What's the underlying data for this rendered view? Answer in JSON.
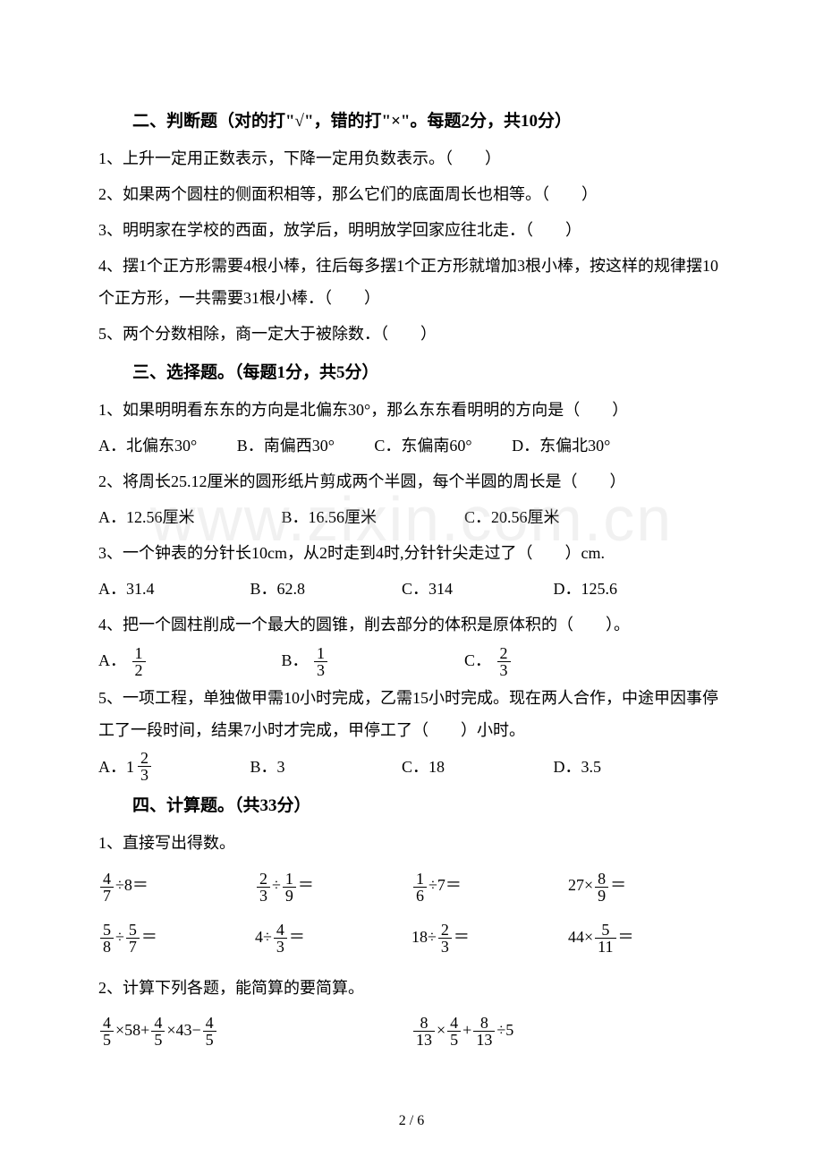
{
  "sections": {
    "s2": {
      "title": "二、判断题（对的打\"√\"，错的打\"×\"。每题2分，共10分）",
      "q1": "1、上升一定用正数表示，下降一定用负数表示。（　　）",
      "q2": "2、如果两个圆柱的侧面积相等，那么它们的底面周长也相等。（　　）",
      "q3": "3、明明家在学校的西面，放学后，明明放学回家应往北走．（　　）",
      "q4": "4、摆1个正方形需要4根小棒，往后每多摆1个正方形就增加3根小棒，按这样的规律摆10个正方形，一共需要31根小棒．（　　）",
      "q5": "5、两个分数相除，商一定大于被除数．（　　）"
    },
    "s3": {
      "title": "三、选择题。（每题1分，共5分）",
      "q1": "1、如果明明看东东的方向是北偏东30°，那么东东看明明的方向是（　　）",
      "q1a": "A．北偏东30°",
      "q1b": "B．南偏西30°",
      "q1c": "C．东偏南60°",
      "q1d": "D．东偏北30°",
      "q2": "2、将周长25.12厘米的圆形纸片剪成两个半圆，每个半圆的周长是（　　）",
      "q2a": "A．12.56厘米",
      "q2b": "B．16.56厘米",
      "q2c": "C．20.56厘米",
      "q3": "3、一个钟表的分针长10cm，从2时走到4时,分针针尖走过了（　　）cm.",
      "q3a": "A．31.4",
      "q3b": "B．62.8",
      "q3c": "C．314",
      "q3d": "D．125.6",
      "q4": "4、把一个圆柱削成一个最大的圆锥，削去部分的体积是原体积的（　　）。",
      "q4a_prefix": "A．",
      "q4a_num": "1",
      "q4a_den": "2",
      "q4b_prefix": "B．",
      "q4b_num": "1",
      "q4b_den": "3",
      "q4c_prefix": "C．",
      "q4c_num": "2",
      "q4c_den": "3",
      "q5": "5、一项工程，单独做甲需10小时完成，乙需15小时完成。现在两人合作，中途甲因事停工了一段时间，结果7小时才完成，甲停工了（　　）小时。",
      "q5a_prefix": "A．",
      "q5a_whole": "1",
      "q5a_num": "2",
      "q5a_den": "3",
      "q5b": "B．3",
      "q5c": "C．18",
      "q5d": "D．3.5"
    },
    "s4": {
      "title": "四、计算题。（共33分）",
      "sub1": "1、直接写出得数。",
      "r1c1_n": "4",
      "r1c1_d": "7",
      "r1c1_rest": "÷8＝",
      "r1c2_n": "2",
      "r1c2_d": "3",
      "r1c2_mid": "÷",
      "r1c2_n2": "1",
      "r1c2_d2": "9",
      "r1c2_rest": "＝",
      "r1c3_n": "1",
      "r1c3_d": "6",
      "r1c3_rest": "÷7＝",
      "r1c4_pre": "27×",
      "r1c4_n": "8",
      "r1c4_d": "9",
      "r1c4_rest": "＝",
      "r2c1_n": "5",
      "r2c1_d": "8",
      "r2c1_mid": "÷",
      "r2c1_n2": "5",
      "r2c1_d2": "7",
      "r2c1_rest": "＝",
      "r2c2_pre": "4÷",
      "r2c2_n": "4",
      "r2c2_d": "3",
      "r2c2_rest": "＝",
      "r2c3_pre": "18÷",
      "r2c3_n": "2",
      "r2c3_d": "3",
      "r2c3_rest": "＝",
      "r2c4_pre": "44×",
      "r2c4_n": "5",
      "r2c4_d": "11",
      "r2c4_rest": "＝",
      "sub2": "2、计算下列各题，能简算的要简算。",
      "e1_f1n": "4",
      "e1_f1d": "5",
      "e1_t1": "×58+",
      "e1_f2n": "4",
      "e1_f2d": "5",
      "e1_t2": "×43−",
      "e1_f3n": "4",
      "e1_f3d": "5",
      "e2_f1n": "8",
      "e2_f1d": "13",
      "e2_t1": "×",
      "e2_f2n": "4",
      "e2_f2d": "5",
      "e2_t2": "+",
      "e2_f3n": "8",
      "e2_f3d": "13",
      "e2_t3": "÷5"
    }
  },
  "watermark": "www.zixin.com.cn",
  "pagenum": "2 / 6"
}
